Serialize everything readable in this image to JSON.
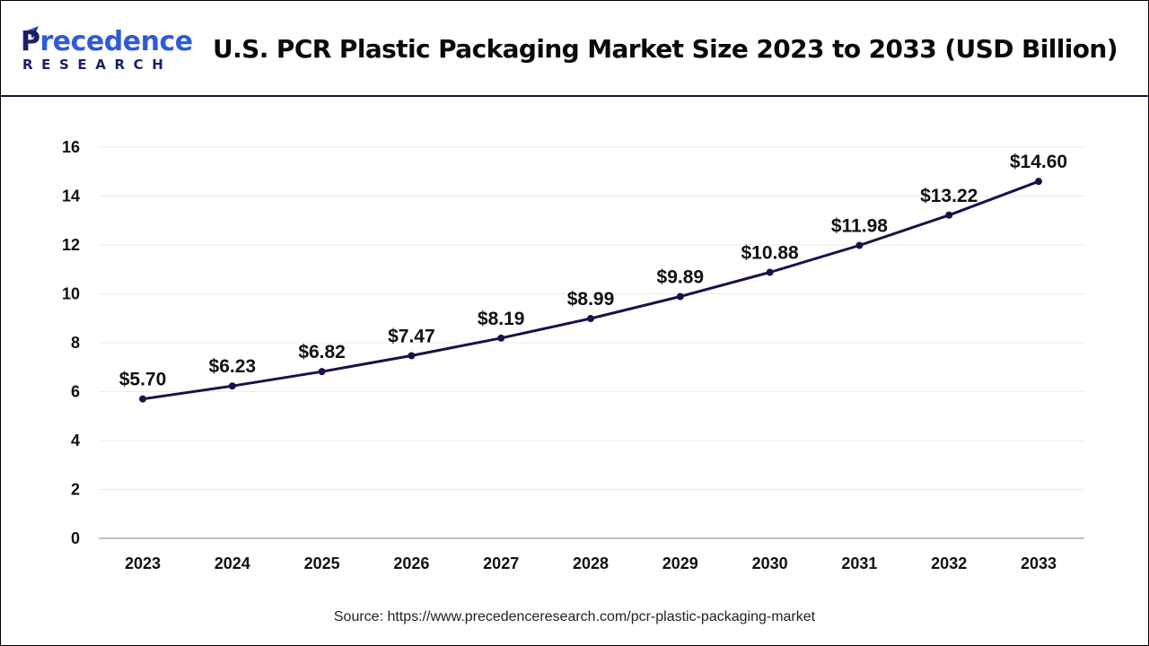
{
  "header": {
    "brand": {
      "top_initial": "P",
      "top_rest": "recedence",
      "bottom": "RESEARCH"
    },
    "title": "U.S. PCR Plastic Packaging Market Size 2023 to 2033 (USD Billion)"
  },
  "source": "Source: https://www.precedenceresearch.com/pcr-plastic-packaging-market",
  "colors": {
    "line": "#14144a",
    "brand_dark": "#1a2066",
    "brand_blue": "#2f5bd8",
    "grid": "#ebebeb",
    "axis": "#bfbfbf"
  },
  "chart_data": {
    "type": "line",
    "title": "U.S. PCR Plastic Packaging Market Size 2023 to 2033 (USD Billion)",
    "xlabel": "",
    "ylabel": "",
    "categories": [
      "2023",
      "2024",
      "2025",
      "2026",
      "2027",
      "2028",
      "2029",
      "2030",
      "2031",
      "2032",
      "2033"
    ],
    "series": [
      {
        "name": "Market Size (USD Billion)",
        "values": [
          5.7,
          6.23,
          6.82,
          7.47,
          8.19,
          8.99,
          9.89,
          10.88,
          11.98,
          13.22,
          14.6
        ]
      }
    ],
    "data_labels": [
      "$5.70",
      "$6.23",
      "$6.82",
      "$7.47",
      "$8.19",
      "$8.99",
      "$9.89",
      "$10.88",
      "$11.98",
      "$13.22",
      "$14.60"
    ],
    "ylim": [
      0,
      16
    ],
    "yticks": [
      0,
      2,
      4,
      6,
      8,
      10,
      12,
      14,
      16
    ],
    "grid": true,
    "legend": "none",
    "markers": true
  }
}
